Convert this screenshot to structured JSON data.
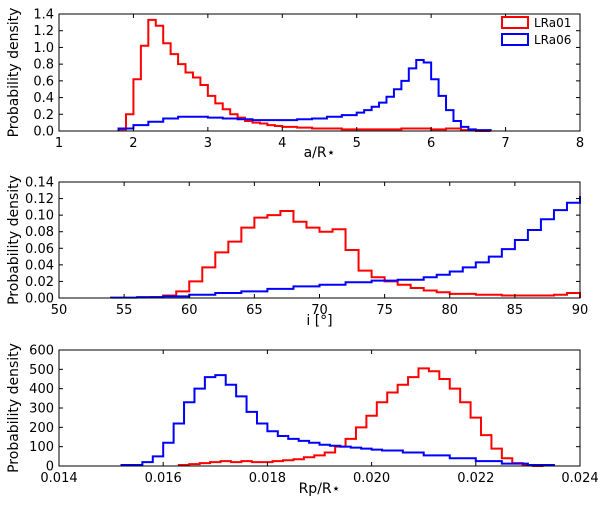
{
  "figure": {
    "legend": [
      {
        "label": "LRa01",
        "color": "#ff0000"
      },
      {
        "label": "LRa06",
        "color": "#0000ff"
      }
    ]
  },
  "chart_data": [
    {
      "type": "histogram",
      "title": "",
      "xlabel": "a/R⋆",
      "ylabel": "Probability density",
      "xlim": [
        1,
        8
      ],
      "ylim": [
        0,
        1.4
      ],
      "xticks": [
        1,
        2,
        3,
        4,
        5,
        6,
        7,
        8
      ],
      "xtick_labels": [
        "1",
        "2",
        "3",
        "4",
        "5",
        "6",
        "7",
        "8"
      ],
      "yticks": [
        0.0,
        0.2,
        0.4,
        0.6,
        0.8,
        1.0,
        1.2,
        1.4
      ],
      "ytick_labels": [
        "0.0",
        "0.2",
        "0.4",
        "0.6",
        "0.8",
        "1.0",
        "1.2",
        "1.4"
      ],
      "legend_position": "top-right",
      "series": [
        {
          "name": "LRa01",
          "color": "#ff0000",
          "bin_edges": [
            1.8,
            1.9,
            2.0,
            2.1,
            2.2,
            2.3,
            2.4,
            2.5,
            2.6,
            2.7,
            2.8,
            2.9,
            3.0,
            3.1,
            3.2,
            3.3,
            3.4,
            3.5,
            3.6,
            3.7,
            3.8,
            3.9,
            4.0,
            4.2,
            4.4,
            4.6,
            4.8,
            5.0,
            5.2,
            5.4,
            5.6,
            5.8,
            6.0,
            6.2,
            6.4,
            6.6,
            6.8
          ],
          "values": [
            0.02,
            0.2,
            0.62,
            1.02,
            1.33,
            1.26,
            1.05,
            0.92,
            0.8,
            0.7,
            0.64,
            0.55,
            0.42,
            0.33,
            0.26,
            0.2,
            0.16,
            0.12,
            0.1,
            0.09,
            0.07,
            0.06,
            0.05,
            0.04,
            0.03,
            0.03,
            0.02,
            0.02,
            0.02,
            0.02,
            0.03,
            0.03,
            0.02,
            0.03,
            0.01,
            0.0
          ]
        },
        {
          "name": "LRa06",
          "color": "#0000ff",
          "bin_edges": [
            1.8,
            2.0,
            2.2,
            2.4,
            2.6,
            2.8,
            3.0,
            3.2,
            3.4,
            3.6,
            3.8,
            4.0,
            4.2,
            4.4,
            4.6,
            4.8,
            5.0,
            5.1,
            5.2,
            5.3,
            5.4,
            5.5,
            5.6,
            5.7,
            5.8,
            5.9,
            6.0,
            6.1,
            6.2,
            6.3,
            6.4,
            6.5,
            6.6,
            6.8
          ],
          "values": [
            0.03,
            0.07,
            0.11,
            0.15,
            0.17,
            0.17,
            0.16,
            0.15,
            0.14,
            0.13,
            0.13,
            0.13,
            0.14,
            0.15,
            0.17,
            0.19,
            0.22,
            0.25,
            0.29,
            0.34,
            0.41,
            0.5,
            0.6,
            0.75,
            0.85,
            0.82,
            0.62,
            0.42,
            0.25,
            0.12,
            0.05,
            0.02,
            0.01
          ]
        }
      ]
    },
    {
      "type": "histogram",
      "title": "",
      "xlabel": "i [°]",
      "ylabel": "Probability density",
      "xlim": [
        50,
        90
      ],
      "ylim": [
        0,
        0.14
      ],
      "xticks": [
        50,
        55,
        60,
        65,
        70,
        75,
        80,
        85,
        90
      ],
      "xtick_labels": [
        "50",
        "55",
        "60",
        "65",
        "70",
        "75",
        "80",
        "85",
        "90"
      ],
      "yticks": [
        0.0,
        0.02,
        0.04,
        0.06,
        0.08,
        0.1,
        0.12,
        0.14
      ],
      "ytick_labels": [
        "0.00",
        "0.02",
        "0.04",
        "0.06",
        "0.08",
        "0.10",
        "0.12",
        "0.14"
      ],
      "series": [
        {
          "name": "LRa01",
          "color": "#ff0000",
          "bin_edges": [
            57,
            58,
            59,
            60,
            61,
            62,
            63,
            64,
            65,
            66,
            67,
            68,
            69,
            70,
            71,
            72,
            73,
            74,
            75,
            76,
            77,
            78,
            79,
            80,
            82,
            84,
            86,
            88,
            89,
            90
          ],
          "values": [
            0.001,
            0.003,
            0.008,
            0.02,
            0.037,
            0.055,
            0.068,
            0.085,
            0.097,
            0.1,
            0.105,
            0.092,
            0.085,
            0.08,
            0.083,
            0.058,
            0.033,
            0.025,
            0.02,
            0.016,
            0.012,
            0.009,
            0.007,
            0.005,
            0.004,
            0.003,
            0.003,
            0.004,
            0.006
          ]
        },
        {
          "name": "LRa06",
          "color": "#0000ff",
          "bin_edges": [
            54,
            56,
            58,
            60,
            62,
            64,
            66,
            68,
            70,
            72,
            74,
            76,
            78,
            79,
            80,
            81,
            82,
            83,
            84,
            85,
            86,
            87,
            88,
            89,
            90
          ],
          "values": [
            0.0005,
            0.001,
            0.002,
            0.004,
            0.006,
            0.008,
            0.011,
            0.014,
            0.016,
            0.019,
            0.021,
            0.022,
            0.025,
            0.028,
            0.032,
            0.037,
            0.043,
            0.05,
            0.059,
            0.07,
            0.082,
            0.095,
            0.106,
            0.115,
            0.123
          ]
        }
      ]
    },
    {
      "type": "histogram",
      "title": "",
      "xlabel": "Rp/R⋆",
      "ylabel": "Probability density",
      "xlim": [
        0.014,
        0.024
      ],
      "ylim": [
        0,
        600
      ],
      "xticks": [
        0.014,
        0.016,
        0.018,
        0.02,
        0.022,
        0.024
      ],
      "xtick_labels": [
        "0.014",
        "0.016",
        "0.018",
        "0.020",
        "0.022",
        "0.024"
      ],
      "yticks": [
        0,
        100,
        200,
        300,
        400,
        500,
        600
      ],
      "ytick_labels": [
        "0",
        "100",
        "200",
        "300",
        "400",
        "500",
        "600"
      ],
      "series": [
        {
          "name": "LRa01",
          "color": "#ff0000",
          "bin_edges": [
            0.0163,
            0.0165,
            0.0167,
            0.0169,
            0.0171,
            0.0173,
            0.0175,
            0.0177,
            0.0179,
            0.0181,
            0.0183,
            0.0185,
            0.0187,
            0.0189,
            0.0191,
            0.0193,
            0.0195,
            0.0197,
            0.0199,
            0.0201,
            0.0203,
            0.0205,
            0.0207,
            0.0209,
            0.0211,
            0.0213,
            0.0215,
            0.0217,
            0.0219,
            0.0221,
            0.0223,
            0.0225,
            0.0227,
            0.0229,
            0.0231,
            0.0233
          ],
          "values": [
            5,
            10,
            15,
            20,
            25,
            20,
            25,
            20,
            20,
            25,
            30,
            35,
            45,
            55,
            70,
            100,
            140,
            200,
            260,
            330,
            380,
            420,
            460,
            505,
            490,
            450,
            400,
            330,
            250,
            160,
            90,
            40,
            15,
            5,
            0
          ]
        },
        {
          "name": "LRa06",
          "color": "#0000ff",
          "bin_edges": [
            0.0152,
            0.0156,
            0.0158,
            0.016,
            0.0162,
            0.0164,
            0.0166,
            0.0168,
            0.017,
            0.0172,
            0.0174,
            0.0176,
            0.0178,
            0.018,
            0.0182,
            0.0184,
            0.0186,
            0.0188,
            0.019,
            0.0192,
            0.0194,
            0.0196,
            0.0198,
            0.02,
            0.0202,
            0.0206,
            0.021,
            0.0215,
            0.022,
            0.0225,
            0.023,
            0.0235
          ],
          "values": [
            5,
            20,
            50,
            120,
            220,
            330,
            400,
            460,
            470,
            420,
            360,
            280,
            220,
            180,
            155,
            140,
            130,
            120,
            110,
            105,
            100,
            95,
            90,
            85,
            80,
            70,
            55,
            40,
            25,
            12,
            5
          ]
        }
      ]
    }
  ]
}
